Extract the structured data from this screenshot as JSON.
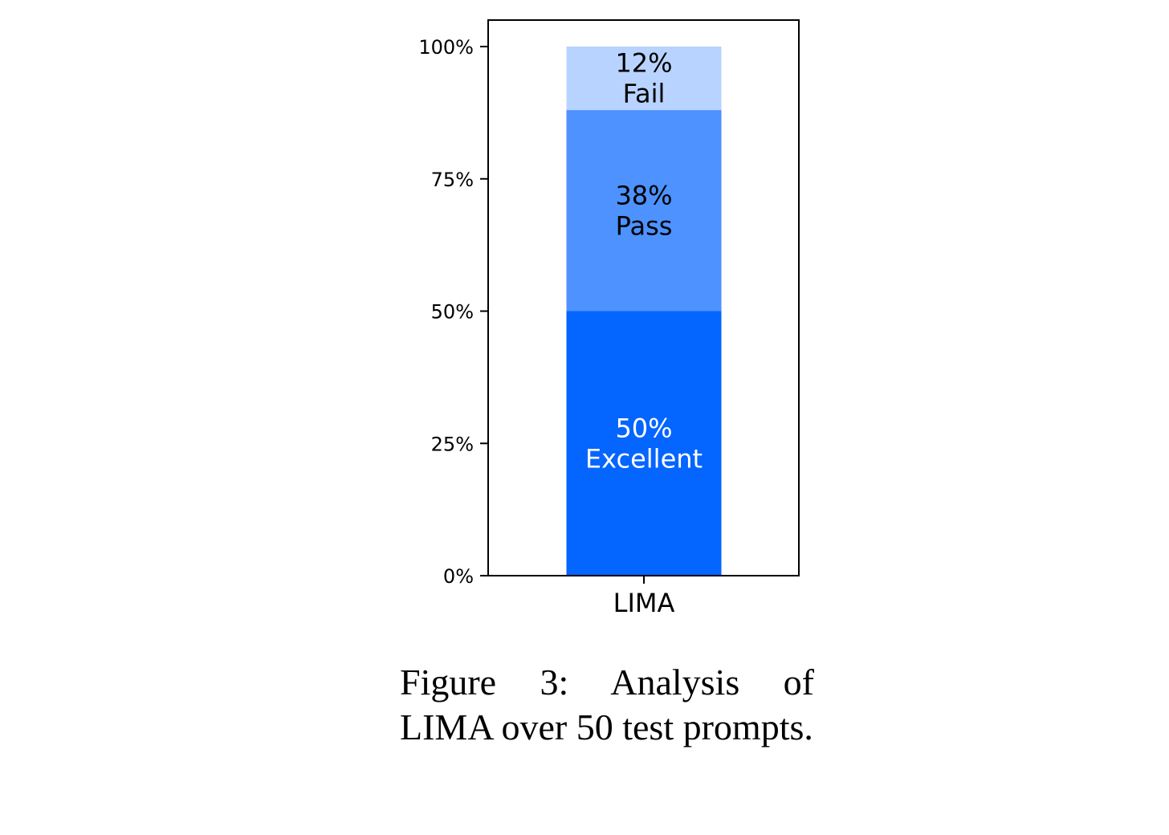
{
  "chart_data": {
    "type": "bar",
    "stacked": true,
    "categories": [
      "LIMA"
    ],
    "series": [
      {
        "name": "Excellent",
        "values": [
          50
        ],
        "label": "50%",
        "color": "#0565ff",
        "text_color": "#ffffff"
      },
      {
        "name": "Pass",
        "values": [
          38
        ],
        "label": "38%",
        "color": "#4d92ff",
        "text_color": "#000000"
      },
      {
        "name": "Fail",
        "values": [
          12
        ],
        "label": "12%",
        "color": "#b8d3ff",
        "text_color": "#000000"
      }
    ],
    "yticks": [
      0,
      25,
      50,
      75,
      100
    ],
    "ytick_labels": [
      "0%",
      "25%",
      "50%",
      "75%",
      "100%"
    ],
    "ylim": [
      -5,
      105
    ],
    "grid": false,
    "legend": "none"
  },
  "caption": "Figure 3: Analysis of LIMA over 50 test prompts."
}
